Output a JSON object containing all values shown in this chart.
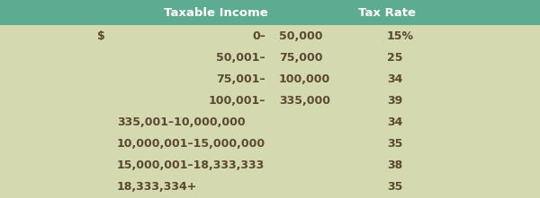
{
  "header_bg": "#5dab91",
  "body_bg": "#d4d9b0",
  "header_text_color": "#ffffff",
  "body_text_color": "#5a4830",
  "header_col1": "Taxable Income",
  "header_col2": "Tax Rate",
  "col1_left": [
    "$",
    "",
    "",
    "",
    "",
    "",
    "",
    ""
  ],
  "col1_mid": [
    "0–",
    "50,001–",
    "75,001–",
    "100,001–",
    "335,001–10,000,000",
    "10,000,001–15,000,000",
    "15,000,001–18,333,333",
    "18,333,334+"
  ],
  "col1_right": [
    "50,000",
    "75,000",
    "100,000",
    "335,000",
    "",
    "",
    "",
    ""
  ],
  "col2": [
    "15%",
    "25",
    "34",
    "39",
    "34",
    "35",
    "38",
    "35"
  ],
  "header_fontsize": 9.5,
  "body_fontsize": 9.0,
  "figsize": [
    6.0,
    2.21
  ],
  "dpi": 100
}
